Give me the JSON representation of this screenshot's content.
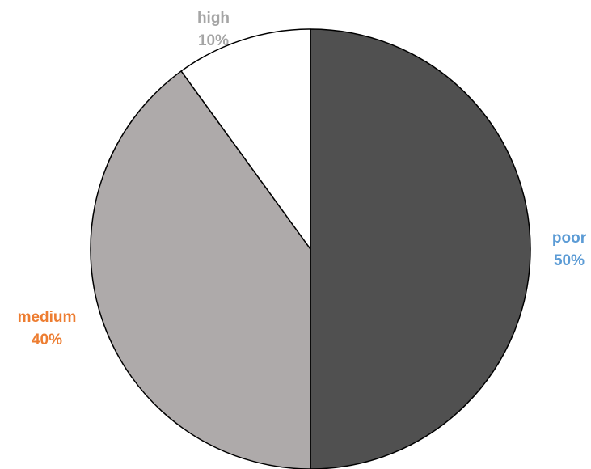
{
  "chart_data": {
    "type": "pie",
    "categories": [
      "poor",
      "medium",
      "high"
    ],
    "values": [
      50,
      40,
      10
    ],
    "value_labels": [
      "50%",
      "40%",
      "10%"
    ],
    "slice_colors": [
      "#505050",
      "#aeaaaa",
      "#ffffff"
    ],
    "label_colors": [
      "#5b9bd5",
      "#ed7d31",
      "#a5a5a5"
    ],
    "start_angle": "12 o'clock",
    "direction": "clockwise",
    "legend": "none"
  }
}
